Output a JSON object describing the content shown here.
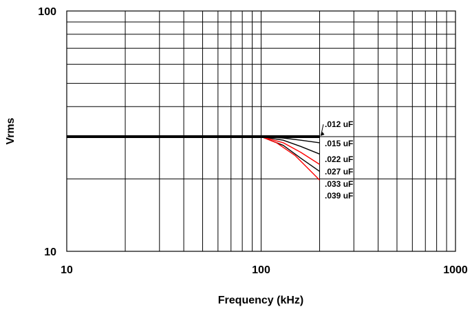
{
  "chart_data": {
    "type": "line",
    "title": "",
    "xlabel": "Frequency (kHz)",
    "ylabel": "Vrms",
    "x_scale": "log",
    "y_scale": "log",
    "xlim": [
      10,
      1000
    ],
    "ylim": [
      10,
      100
    ],
    "x_ticks": [
      "10",
      "100",
      "1000"
    ],
    "y_ticks": [
      "10",
      "100"
    ],
    "grid": true,
    "series": [
      {
        "name": ".012 uF",
        "color": "#000000",
        "x": [
          10,
          100,
          150,
          200
        ],
        "y": [
          30,
          30,
          30,
          30
        ]
      },
      {
        "name": ".015 uF",
        "color": "#000000",
        "x": [
          10,
          100,
          130,
          160,
          200
        ],
        "y": [
          30,
          30,
          29.6,
          29.0,
          28.3
        ]
      },
      {
        "name": ".022 uF",
        "color": "#000000",
        "x": [
          10,
          100,
          130,
          160,
          200
        ],
        "y": [
          30,
          30,
          29.0,
          27.3,
          25.4
        ]
      },
      {
        "name": ".027 uF",
        "color": "#ff0000",
        "x": [
          10,
          100,
          130,
          160,
          200
        ],
        "y": [
          30,
          30,
          28.3,
          25.8,
          23.0
        ]
      },
      {
        "name": ".033 uF",
        "color": "#000000",
        "x": [
          10,
          100,
          130,
          160,
          200
        ],
        "y": [
          30,
          30,
          27.6,
          24.4,
          21.5
        ]
      },
      {
        "name": ".039 uF",
        "color": "#ff0000",
        "x": [
          10,
          100,
          120,
          150,
          200
        ],
        "y": [
          30,
          30,
          28.3,
          25.0,
          19.8
        ]
      }
    ],
    "annotations": [
      ".012 uF",
      ".015 uF",
      ".022 uF",
      ".027 uF",
      ".033 uF",
      ".039 uF"
    ]
  }
}
